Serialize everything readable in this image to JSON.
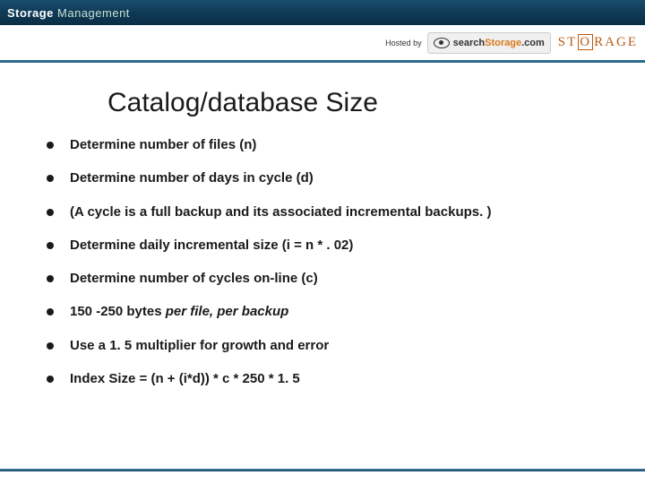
{
  "header": {
    "title_bold": "Storage",
    "title_light": "Management"
  },
  "sponsor": {
    "hosted_by": "Hosted by",
    "search_prefix": "search",
    "search_orange": "Storage",
    "search_suffix": ".com",
    "storage_logo": "STORAGE"
  },
  "slide": {
    "title": "Catalog/database Size"
  },
  "bullets": [
    {
      "text": "Determine number of files (n)"
    },
    {
      "text": "Determine number of days in cycle (d)"
    },
    {
      "text": "(A cycle is a full backup and its associated incremental backups. )"
    },
    {
      "text": "Determine daily incremental size (i = n * . 02)"
    },
    {
      "text": "Determine number of cycles on-line (c)"
    },
    {
      "html": "150 -250 bytes <span class=\"italic\">per file, per backup</span>"
    },
    {
      "text": "Use a 1. 5 multiplier for growth and error"
    },
    {
      "text": "Index Size = (n + (i*d)) * c * 250 * 1. 5"
    }
  ],
  "colors": {
    "header_gradient_top": "#1a4d6d",
    "header_gradient_bottom": "#0a2e45",
    "accent_line": "#2b6a8a",
    "orange": "#d97a1a",
    "storage_orange": "#b85c1a",
    "text": "#1a1a1a",
    "background": "#ffffff"
  }
}
